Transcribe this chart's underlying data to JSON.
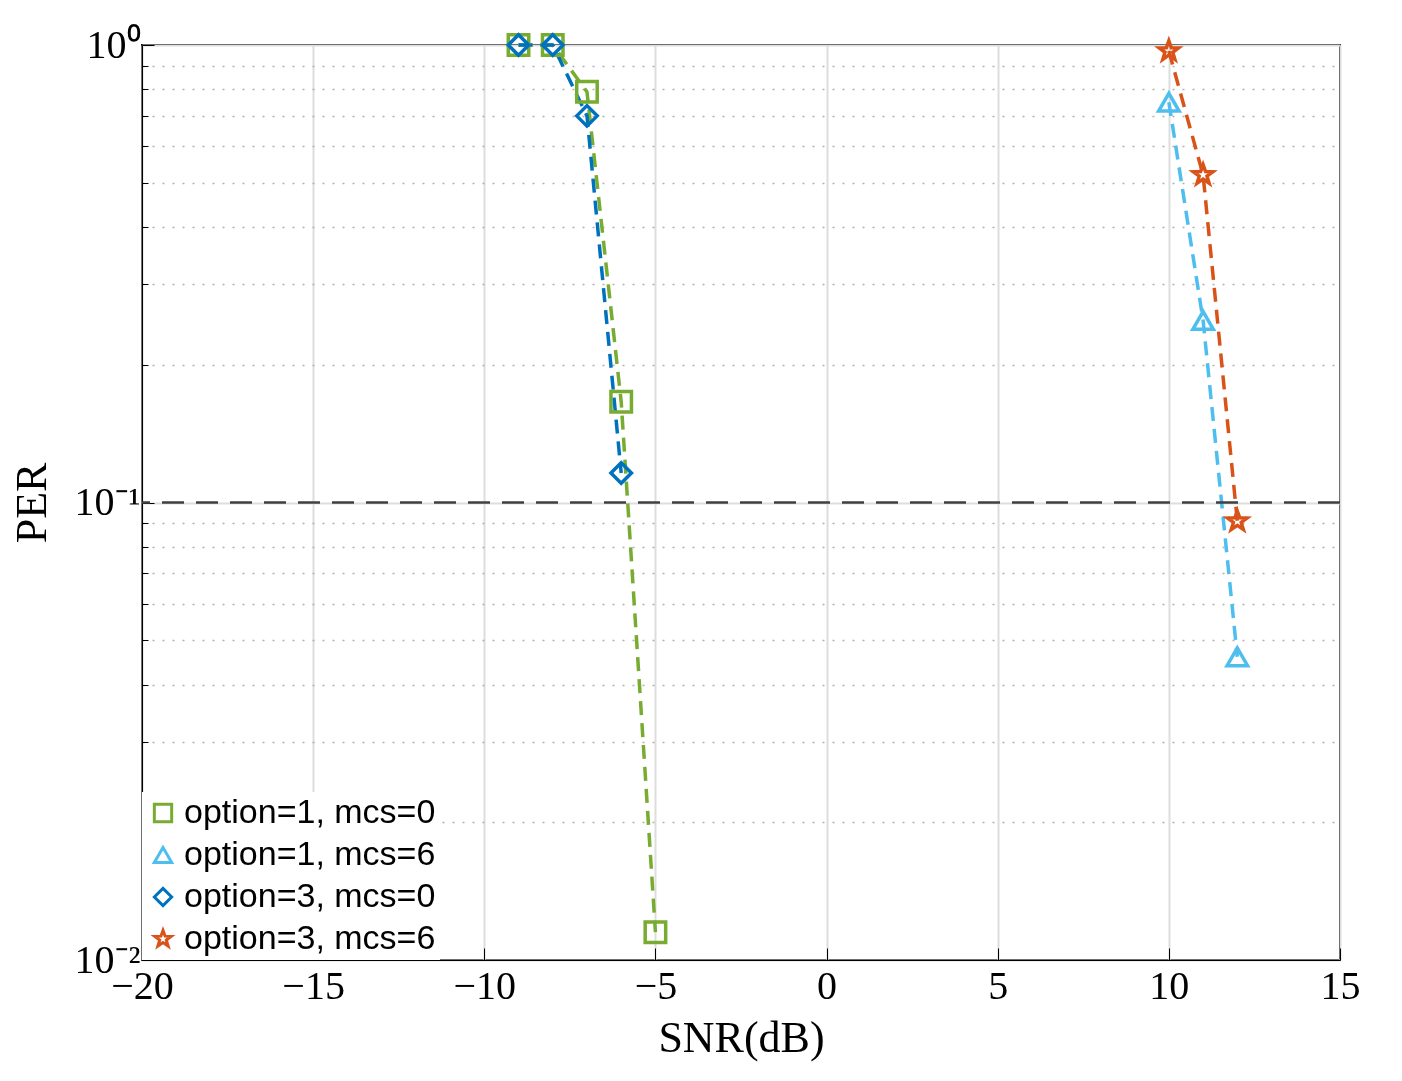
{
  "chart_data": {
    "type": "line",
    "xlabel": "SNR(dB)",
    "ylabel": "PER",
    "log": "y",
    "grid": true,
    "legend": "bottom left",
    "line_style": "dashed",
    "x": [
      -9,
      -8,
      -7,
      -6,
      -5
    ],
    "xlim": [
      -20,
      15
    ],
    "xticks": [
      -20,
      -15,
      -10,
      -5,
      0,
      5,
      10,
      15
    ],
    "ylim": [
      0.01,
      1
    ],
    "yticks": [
      {
        "value": 1,
        "label": "10⁰"
      },
      {
        "value": 0.1,
        "label": "10⁻¹"
      },
      {
        "value": 0.01,
        "label": "10⁻²"
      },
      {
        "value": 0.9,
        "label": null
      },
      {
        "value": 0.8,
        "label": null
      },
      {
        "value": 0.7,
        "label": null
      },
      {
        "value": 0.6,
        "label": null
      },
      {
        "value": 0.5,
        "label": null
      },
      {
        "value": 0.4,
        "label": null
      },
      {
        "value": 0.3,
        "label": null
      },
      {
        "value": 0.2,
        "label": null
      },
      {
        "value": 0.09,
        "label": null
      },
      {
        "value": 0.08,
        "label": null
      },
      {
        "value": 0.07,
        "label": null
      },
      {
        "value": 0.06,
        "label": null
      },
      {
        "value": 0.05,
        "label": null
      },
      {
        "value": 0.04,
        "label": null
      },
      {
        "value": 0.03,
        "label": null
      },
      {
        "value": 0.02,
        "label": null
      }
    ],
    "series": [
      {
        "name": "option=1, mcs=0",
        "color": "#77ac30",
        "marker": "square",
        "values": [
          1,
          1,
          0.79,
          0.166,
          0.0115
        ]
      },
      {
        "name": "option=1, mcs=6",
        "color": "#4dbeee",
        "marker": "triangle",
        "x": [
          10,
          11,
          12
        ],
        "values": [
          0.75,
          0.25,
          0.046
        ]
      },
      {
        "name": "option=3, mcs=0",
        "color": "#0072bd",
        "marker": "diamond",
        "values": [
          1,
          1,
          0.7,
          0.116,
          null
        ]
      },
      {
        "name": "option=3, mcs=6",
        "color": "#d95319",
        "marker": "star",
        "x": [
          10,
          11,
          12
        ],
        "values": [
          0.97,
          0.52,
          0.091
        ]
      }
    ],
    "ref_lines": [
      {
        "axis": "y",
        "value": 0.1,
        "color": "#404040",
        "line_style": "dashed"
      }
    ]
  }
}
